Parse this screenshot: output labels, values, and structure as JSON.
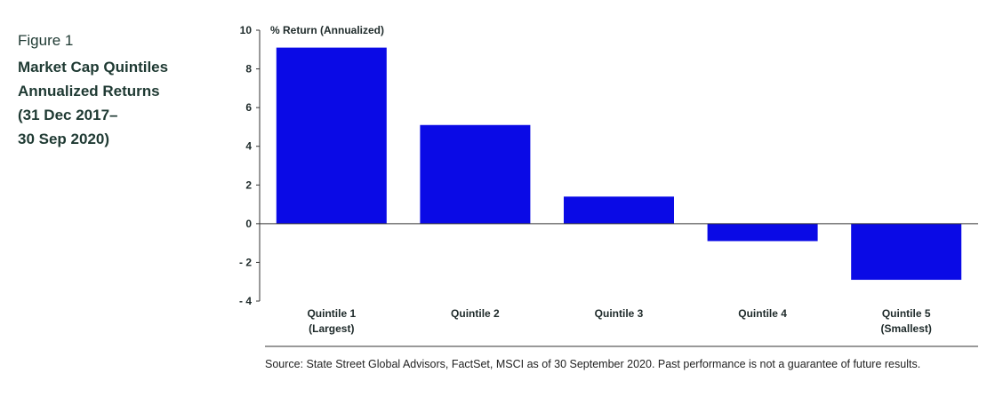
{
  "figure": {
    "label": "Figure 1",
    "title_lines": [
      "Market Cap Quintiles",
      "Annualized Returns",
      "(31 Dec 2017–",
      "30 Sep 2020)"
    ]
  },
  "chart_data": {
    "type": "bar",
    "title": "",
    "ylabel": "% Return (Annualized)",
    "xlabel": "",
    "ylim": [
      -4,
      10
    ],
    "yticks": [
      10,
      8,
      6,
      4,
      2,
      0,
      -2,
      -4
    ],
    "ytick_labels": [
      "10",
      "8",
      "6",
      "4",
      "2",
      "0",
      "- 2",
      "- 4"
    ],
    "categories": [
      [
        "Quintile 1",
        "(Largest)"
      ],
      [
        "Quintile 2"
      ],
      [
        "Quintile 3"
      ],
      [
        "Quintile 4"
      ],
      [
        "Quintile 5",
        "(Smallest)"
      ]
    ],
    "values": [
      9.1,
      5.1,
      1.4,
      -0.9,
      -2.9
    ],
    "bar_color": "#0a0ae6",
    "grid": false
  },
  "source_note": "Source: State Street Global Advisors, FactSet, MSCI as of 30 September 2020. Past performance is not a guarantee of future results."
}
